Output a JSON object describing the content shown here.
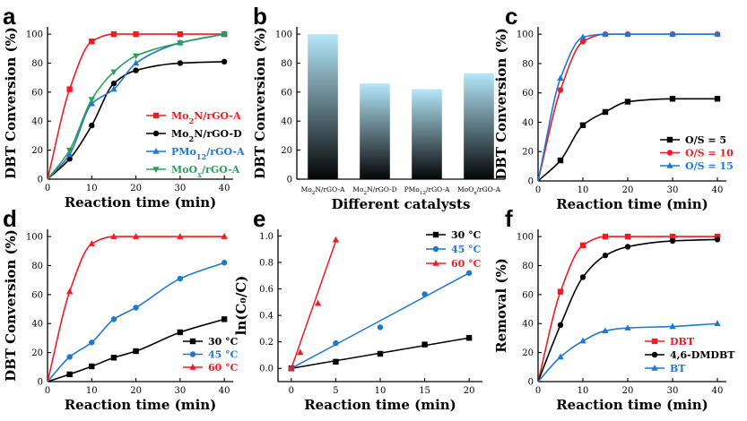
{
  "figure": {
    "panels": [
      "a",
      "b",
      "c",
      "d",
      "e",
      "f"
    ]
  },
  "chart_data": [
    {
      "panel": "a",
      "type": "line",
      "xlabel": "Reaction time (min)",
      "ylabel": "DBT Conversion (%)",
      "xlim": [
        0,
        42
      ],
      "ylim": [
        0,
        105
      ],
      "xticks": [
        0,
        10,
        20,
        30,
        40
      ],
      "yticks": [
        0,
        20,
        40,
        60,
        80,
        100
      ],
      "legend_position": "center-right",
      "series": [
        {
          "name": "Mo₂N/rGO-A",
          "name_parts": [
            "Mo",
            "2",
            "N/rGO-A"
          ],
          "color": "#ee1c25",
          "marker": "square",
          "x": [
            0,
            5,
            10,
            15,
            20,
            30,
            40
          ],
          "y": [
            0,
            62,
            95,
            100,
            100,
            100,
            100
          ]
        },
        {
          "name": "Mo₂N/rGO-D",
          "name_parts": [
            "Mo",
            "2",
            "N/rGO-D"
          ],
          "color": "#000000",
          "marker": "circle",
          "x": [
            0,
            5,
            10,
            15,
            20,
            30,
            40
          ],
          "y": [
            0,
            14,
            37,
            66,
            75,
            80,
            81
          ]
        },
        {
          "name": "PMo₁₂/rGO-A",
          "name_parts": [
            "PMo",
            "12",
            "/rGO-A"
          ],
          "color": "#1f77d4",
          "marker": "triangle-up",
          "x": [
            0,
            5,
            10,
            15,
            20,
            30,
            40
          ],
          "y": [
            0,
            17,
            52,
            62,
            80,
            94,
            100
          ]
        },
        {
          "name": "MoOₓ/rGO-A",
          "name_parts": [
            "MoO",
            "x",
            "/rGO-A"
          ],
          "color": "#2ca05a",
          "marker": "triangle-down",
          "x": [
            0,
            5,
            10,
            15,
            20,
            30,
            40
          ],
          "y": [
            0,
            20,
            55,
            74,
            85,
            94,
            100
          ]
        }
      ]
    },
    {
      "panel": "b",
      "type": "bar",
      "xlabel": "Different catalysts",
      "ylabel": "DBT Conversion (%)",
      "ylim": [
        0,
        105
      ],
      "yticks": [
        0,
        20,
        40,
        60,
        80,
        100
      ],
      "categories": [
        "Mo₂N/rGO-A",
        "Mo₂N/rGO-D",
        "PMo₁₂/rGO-A",
        "MoOₓ/rGO-A"
      ],
      "category_parts": [
        [
          "Mo",
          "2",
          "N/rGO-A"
        ],
        [
          "Mo",
          "2",
          "N/rGO-D"
        ],
        [
          "PMo",
          "12",
          "/rGO-A"
        ],
        [
          "MoO",
          "x",
          "/rGO-A"
        ]
      ],
      "values": [
        100,
        66,
        62,
        73
      ],
      "colors": {
        "top": "#b5e8fa",
        "bottom": "#050505"
      }
    },
    {
      "panel": "c",
      "type": "line",
      "xlabel": "Reaction time (min)",
      "ylabel": "DBT Conversion (%)",
      "xlim": [
        0,
        42
      ],
      "ylim": [
        0,
        105
      ],
      "xticks": [
        0,
        10,
        20,
        30,
        40
      ],
      "yticks": [
        0,
        20,
        40,
        60,
        80,
        100
      ],
      "legend_position": "bottom-right",
      "series": [
        {
          "name": "O/S = 5",
          "color": "#000000",
          "marker": "square",
          "x": [
            0,
            5,
            10,
            15,
            20,
            30,
            40
          ],
          "y": [
            0,
            14,
            38,
            47,
            54,
            56,
            56
          ]
        },
        {
          "name": "O/S = 10",
          "color": "#ee1c25",
          "marker": "circle",
          "x": [
            0,
            5,
            10,
            15,
            20,
            30,
            40
          ],
          "y": [
            0,
            62,
            95,
            100,
            100,
            100,
            100
          ]
        },
        {
          "name": "O/S = 15",
          "color": "#1f77d4",
          "marker": "triangle-up",
          "x": [
            0,
            5,
            10,
            15,
            20,
            30,
            40
          ],
          "y": [
            0,
            70,
            98,
            100,
            100,
            100,
            100
          ]
        }
      ]
    },
    {
      "panel": "d",
      "type": "line",
      "xlabel": "Reaction time (min)",
      "ylabel": "DBT Conversion (%)",
      "xlim": [
        0,
        42
      ],
      "ylim": [
        0,
        105
      ],
      "xticks": [
        0,
        10,
        20,
        30,
        40
      ],
      "yticks": [
        0,
        20,
        40,
        60,
        80,
        100
      ],
      "legend_position": "bottom-right",
      "series": [
        {
          "name": "30 °C",
          "color": "#000000",
          "marker": "square",
          "x": [
            0,
            5,
            10,
            15,
            20,
            30,
            40
          ],
          "y": [
            0,
            5,
            10.5,
            16.5,
            21,
            34,
            43
          ]
        },
        {
          "name": "45 °C",
          "color": "#1f77d4",
          "marker": "circle",
          "x": [
            0,
            5,
            10,
            15,
            20,
            30,
            40
          ],
          "y": [
            0,
            17,
            27,
            43,
            51,
            71,
            82
          ]
        },
        {
          "name": "60 °C",
          "color": "#ee1c25",
          "marker": "triangle-up",
          "x": [
            0,
            5,
            10,
            15,
            20,
            30,
            40
          ],
          "y": [
            0,
            62,
            95,
            100,
            100,
            100,
            100
          ]
        }
      ]
    },
    {
      "panel": "e",
      "type": "scatter",
      "xlabel": "Reaction time (min)",
      "ylabel": "ln(C₀/C)",
      "xlim": [
        -1.5,
        21.5
      ],
      "ylim": [
        -0.1,
        1.05
      ],
      "xticks": [
        0,
        5,
        10,
        15,
        20
      ],
      "yticks": [
        0.0,
        0.2,
        0.4,
        0.6,
        0.8,
        1.0
      ],
      "legend_position": "top-right",
      "series": [
        {
          "name": "30 °C",
          "color": "#000000",
          "marker": "square",
          "x": [
            0,
            5,
            10,
            15,
            20
          ],
          "y": [
            0,
            0.05,
            0.11,
            0.18,
            0.23
          ],
          "fit": {
            "x": [
              0,
              20
            ],
            "y": [
              0,
              0.23
            ]
          }
        },
        {
          "name": "45 °C",
          "color": "#1f77d4",
          "marker": "circle",
          "x": [
            0,
            5,
            10,
            15,
            20
          ],
          "y": [
            0,
            0.19,
            0.31,
            0.56,
            0.72
          ],
          "fit": {
            "x": [
              0,
              20
            ],
            "y": [
              0,
              0.72
            ]
          }
        },
        {
          "name": "60 °C",
          "color": "#ee1c25",
          "marker": "triangle-up",
          "x": [
            0,
            1,
            3,
            5
          ],
          "y": [
            0,
            0.12,
            0.49,
            0.97
          ],
          "fit": {
            "x": [
              0,
              5
            ],
            "y": [
              0,
              0.96
            ]
          }
        }
      ]
    },
    {
      "panel": "f",
      "type": "line",
      "xlabel": "Reaction time (min)",
      "ylabel": "Removal (%)",
      "xlim": [
        0,
        42
      ],
      "ylim": [
        0,
        105
      ],
      "xticks": [
        0,
        10,
        20,
        30,
        40
      ],
      "yticks": [
        0,
        20,
        40,
        60,
        80,
        100
      ],
      "legend_position": "bottom-right",
      "series": [
        {
          "name": "DBT",
          "color": "#ee1c25",
          "marker": "square",
          "x": [
            0,
            5,
            10,
            15,
            20,
            30,
            40
          ],
          "y": [
            0,
            62,
            94,
            100,
            100,
            100,
            100
          ]
        },
        {
          "name": "4,6-DMDBT",
          "color": "#000000",
          "marker": "circle",
          "x": [
            0,
            5,
            10,
            15,
            20,
            30,
            40
          ],
          "y": [
            0,
            39,
            72,
            87,
            93,
            97,
            98
          ]
        },
        {
          "name": "BT",
          "color": "#1f77d4",
          "marker": "triangle-up",
          "x": [
            0,
            5,
            10,
            15,
            20,
            30,
            40
          ],
          "y": [
            0,
            17,
            28,
            35,
            37,
            38,
            40
          ]
        }
      ]
    }
  ]
}
